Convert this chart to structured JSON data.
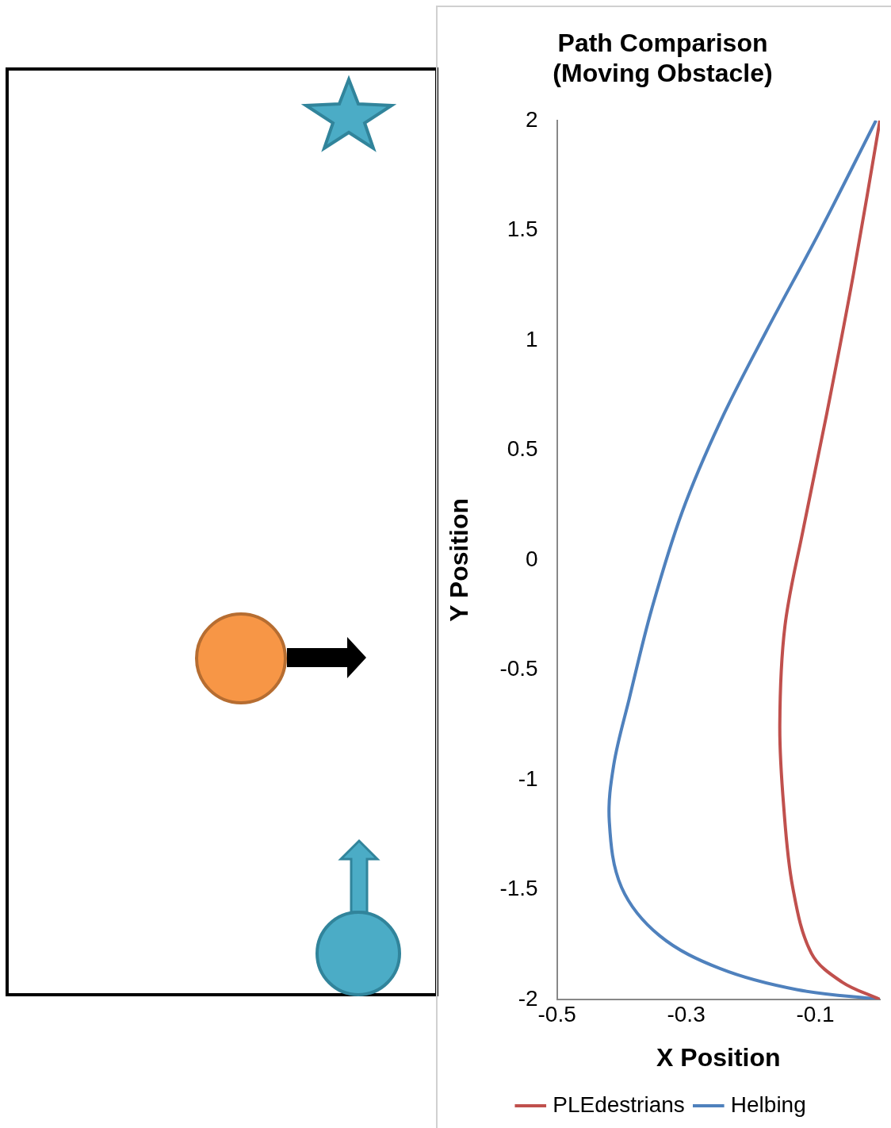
{
  "chart_data": {
    "type": "line",
    "title": [
      "Path Comparison",
      "(Moving Obstacle)"
    ],
    "xlabel": "X Position",
    "ylabel": "Y Position",
    "xlim": [
      -0.5,
      0
    ],
    "xticks": [
      -0.5,
      -0.3,
      -0.1
    ],
    "ylim": [
      -2,
      2
    ],
    "yticks": [
      2,
      1.5,
      1,
      0.5,
      0,
      -0.5,
      -1,
      -1.5,
      -2
    ],
    "legend": "bottom",
    "marker": "none",
    "line_style": "solid",
    "series": [
      {
        "name": "PLEdestrians",
        "color": "#c0504d",
        "x": [
          0,
          -0.059,
          -0.106,
          -0.135,
          -0.149,
          -0.155,
          -0.147,
          -0.118,
          -0.082,
          -0.041,
          0
        ],
        "values": [
          -2,
          -1.92,
          -1.79,
          -1.49,
          -1.12,
          -0.75,
          -0.3,
          0.15,
          0.67,
          1.3,
          2
        ]
      },
      {
        "name": "Helbing",
        "color": "#4f81bd",
        "x": [
          0,
          -0.129,
          -0.247,
          -0.341,
          -0.4,
          -0.419,
          -0.412,
          -0.388,
          -0.353,
          -0.306,
          -0.247,
          -0.176,
          -0.094,
          -0.006
        ],
        "values": [
          -2,
          -1.955,
          -1.86,
          -1.71,
          -1.49,
          -1.19,
          -0.93,
          -0.63,
          -0.22,
          0.22,
          0.63,
          1.04,
          1.49,
          2
        ]
      }
    ]
  }
}
